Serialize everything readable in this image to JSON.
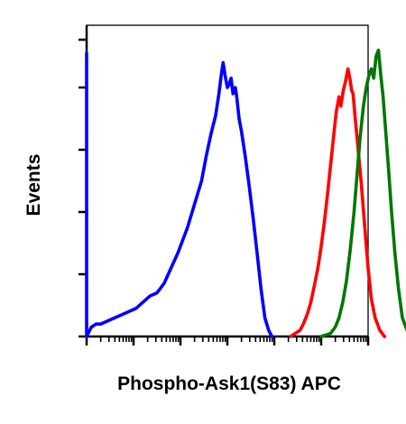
{
  "chart_data": {
    "type": "line",
    "title": "",
    "xlabel": "Phospho-Ask1(S83) APC",
    "ylabel": "Events",
    "xscale": "log",
    "xlim": [
      0,
      1000000
    ],
    "ylim": [
      0,
      100
    ],
    "grid": false,
    "legend": "none",
    "series": [
      {
        "color": "#0000ff",
        "points": [
          [
            1,
            91
          ],
          [
            1,
            0
          ],
          [
            1.1,
            3
          ],
          [
            1.2,
            4
          ],
          [
            1.3,
            4
          ],
          [
            1.45,
            5
          ],
          [
            1.6,
            6
          ],
          [
            1.75,
            7
          ],
          [
            1.9,
            8
          ],
          [
            2.05,
            9
          ],
          [
            2.2,
            11
          ],
          [
            2.35,
            13
          ],
          [
            2.5,
            14
          ],
          [
            2.65,
            17
          ],
          [
            2.8,
            22
          ],
          [
            2.95,
            27
          ],
          [
            3.05,
            31
          ],
          [
            3.15,
            35
          ],
          [
            3.25,
            40
          ],
          [
            3.35,
            45
          ],
          [
            3.45,
            50
          ],
          [
            3.55,
            58
          ],
          [
            3.65,
            65
          ],
          [
            3.75,
            71
          ],
          [
            3.82,
            78
          ],
          [
            3.87,
            84
          ],
          [
            3.91,
            88
          ],
          [
            3.95,
            84
          ],
          [
            4.0,
            80
          ],
          [
            4.04,
            81
          ],
          [
            4.08,
            83
          ],
          [
            4.12,
            78
          ],
          [
            4.17,
            80
          ],
          [
            4.2,
            77
          ],
          [
            4.25,
            70
          ],
          [
            4.3,
            66
          ],
          [
            4.38,
            58
          ],
          [
            4.46,
            49
          ],
          [
            4.55,
            38
          ],
          [
            4.64,
            26
          ],
          [
            4.72,
            15
          ],
          [
            4.8,
            6
          ],
          [
            4.88,
            2
          ],
          [
            4.95,
            0
          ]
        ]
      },
      {
        "color": "#ff0000",
        "points": [
          [
            5.35,
            0
          ],
          [
            5.45,
            1
          ],
          [
            5.55,
            2
          ],
          [
            5.62,
            4
          ],
          [
            5.7,
            7
          ],
          [
            5.78,
            11
          ],
          [
            5.85,
            16
          ],
          [
            5.93,
            22
          ],
          [
            6.0,
            29
          ],
          [
            6.07,
            37
          ],
          [
            6.13,
            45
          ],
          [
            6.2,
            55
          ],
          [
            6.27,
            65
          ],
          [
            6.32,
            72
          ],
          [
            6.38,
            77
          ],
          [
            6.42,
            74
          ],
          [
            6.47,
            79
          ],
          [
            6.52,
            82
          ],
          [
            6.57,
            86
          ],
          [
            6.61,
            83
          ],
          [
            6.65,
            79
          ],
          [
            6.68,
            78
          ],
          [
            6.72,
            71
          ],
          [
            6.77,
            63
          ],
          [
            6.85,
            50
          ],
          [
            6.93,
            35
          ],
          [
            7.0,
            22
          ],
          [
            7.07,
            12
          ],
          [
            7.15,
            6
          ],
          [
            7.25,
            2
          ],
          [
            7.35,
            0
          ]
        ]
      },
      {
        "color": "#007700",
        "points": [
          [
            6.0,
            0
          ],
          [
            6.2,
            1
          ],
          [
            6.3,
            3
          ],
          [
            6.38,
            6
          ],
          [
            6.46,
            11
          ],
          [
            6.54,
            18
          ],
          [
            6.62,
            28
          ],
          [
            6.7,
            40
          ],
          [
            6.77,
            53
          ],
          [
            6.83,
            64
          ],
          [
            6.9,
            74
          ],
          [
            6.96,
            80
          ],
          [
            7.02,
            84
          ],
          [
            7.07,
            86
          ],
          [
            7.12,
            83
          ],
          [
            7.17,
            90
          ],
          [
            7.22,
            92
          ],
          [
            7.27,
            84
          ],
          [
            7.32,
            77
          ],
          [
            7.37,
            67
          ],
          [
            7.43,
            55
          ],
          [
            7.5,
            40
          ],
          [
            7.57,
            27
          ],
          [
            7.65,
            15
          ],
          [
            7.73,
            6
          ],
          [
            7.83,
            2
          ],
          [
            7.95,
            0
          ]
        ]
      }
    ],
    "x_decades": [
      1,
      10,
      100,
      1000,
      10000,
      100000,
      1000000
    ],
    "y_ticks": [
      0,
      20,
      40,
      60,
      80,
      100
    ]
  }
}
